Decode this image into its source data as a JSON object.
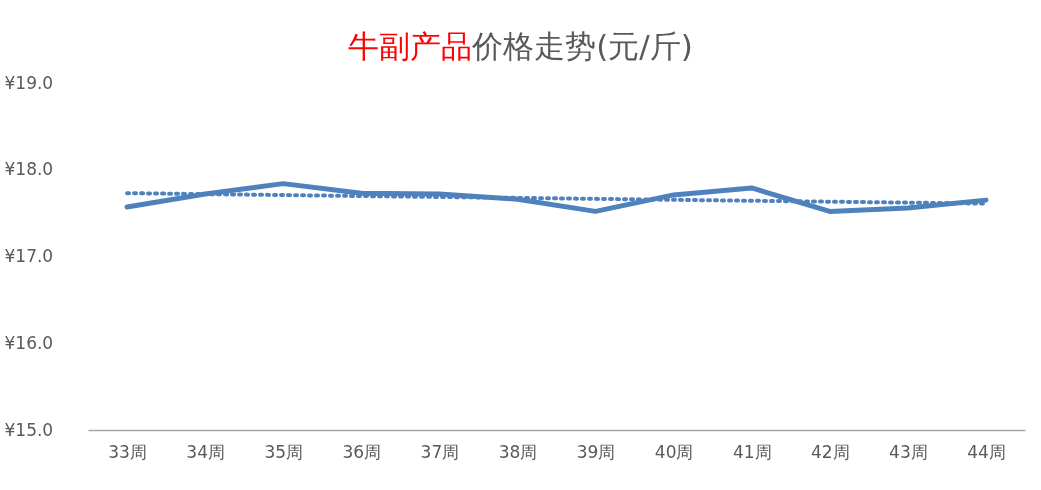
{
  "chart_data": {
    "type": "line",
    "title": "牛副产品价格走势(元/斤)",
    "categories": [
      "33周",
      "34周",
      "35周",
      "36周",
      "37周",
      "38周",
      "39周",
      "40周",
      "41周",
      "42周",
      "43周",
      "44周"
    ],
    "series": [
      {
        "color": "#4f81bd",
        "line_style": "solid",
        "values": [
          17.57,
          17.72,
          17.84,
          17.73,
          17.72,
          17.66,
          17.52,
          17.71,
          17.79,
          17.52,
          17.56,
          17.65
        ]
      },
      {
        "type": "line",
        "color": "#4f81bd",
        "line_style": "dotted",
        "x": [
          "33周",
          "44周"
        ],
        "values": [
          17.73,
          17.61
        ]
      }
    ],
    "ylim": [
      15,
      19
    ],
    "yticks": [
      {
        "value": 15,
        "label": "¥15.0"
      },
      {
        "value": 16,
        "label": "¥16.0"
      },
      {
        "value": 17,
        "label": "¥17.0"
      },
      {
        "value": 18,
        "label": "¥18.0"
      },
      {
        "value": 19,
        "label": "¥19.0"
      }
    ],
    "grid": false,
    "legend": false,
    "marker": "none"
  }
}
